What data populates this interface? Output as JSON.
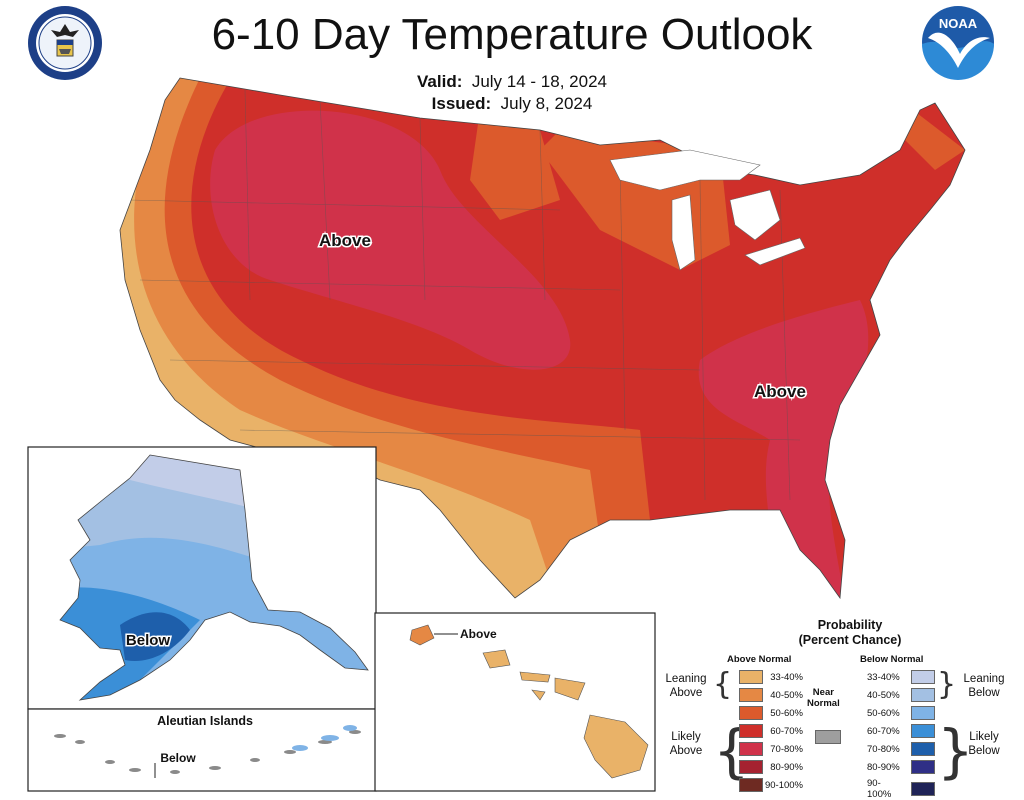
{
  "header": {
    "title": "6-10 Day Temperature Outlook",
    "valid_label": "Valid:",
    "valid_value": "July 14 - 18, 2024",
    "issued_label": "Issued:",
    "issued_value": "July 8, 2024",
    "left_logo_icon": "doc-seal-icon",
    "right_logo_icon": "noaa-logo-icon",
    "right_logo_text": "NOAA"
  },
  "map": {
    "labels": {
      "conus_west": "Above",
      "conus_east": "Above",
      "alaska": "Below",
      "hawaii": "Above",
      "aleutian_title": "Aleutian Islands",
      "aleutian": "Below"
    }
  },
  "legend": {
    "title_line1": "Probability",
    "title_line2": "(Percent Chance)",
    "above_heading": "Above Normal",
    "below_heading": "Below Normal",
    "near_label_1": "Near",
    "near_label_2": "Normal",
    "near_color": "#9e9e9e",
    "left_groups": {
      "leaning_1": "Leaning",
      "leaning_2": "Above",
      "likely_1": "Likely",
      "likely_2": "Above"
    },
    "right_groups": {
      "leaning_1": "Leaning",
      "leaning_2": "Below",
      "likely_1": "Likely",
      "likely_2": "Below"
    },
    "above": [
      {
        "label": "33-40%",
        "color": "#e9b268"
      },
      {
        "label": "40-50%",
        "color": "#e58844"
      },
      {
        "label": "50-60%",
        "color": "#dc5a2c"
      },
      {
        "label": "60-70%",
        "color": "#cf2f2a"
      },
      {
        "label": "70-80%",
        "color": "#d0324a"
      },
      {
        "label": "80-90%",
        "color": "#a52230"
      },
      {
        "label": "90-100%",
        "color": "#6e2a22"
      }
    ],
    "below": [
      {
        "label": "33-40%",
        "color": "#c2cde8"
      },
      {
        "label": "40-50%",
        "color": "#a3c0e3"
      },
      {
        "label": "50-60%",
        "color": "#7fb3e6"
      },
      {
        "label": "60-70%",
        "color": "#3b8fd7"
      },
      {
        "label": "70-80%",
        "color": "#1e5fab"
      },
      {
        "label": "80-90%",
        "color": "#2f2f86"
      },
      {
        "label": "90-100%",
        "color": "#1f2357"
      }
    ]
  }
}
